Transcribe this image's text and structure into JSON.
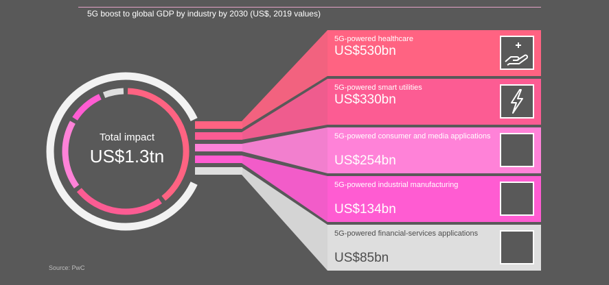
{
  "title": "5G boost to global GDP by industry by 2030 (US$, 2019 values)",
  "total": {
    "label": "Total impact",
    "value": "US$1.3tn"
  },
  "source": "Source: PwC",
  "colors": {
    "background": "#595959",
    "healthcare": "#ff6382",
    "smart_utilities": "#fc5c93",
    "consumer_media": "#ff82d8",
    "industrial": "#ff5cd2",
    "financial": "#dedede",
    "ring_track": "#f2f2f2"
  },
  "chart_data": {
    "type": "bar",
    "title": "5G boost to global GDP by industry by 2030 (US$, 2019 values)",
    "unit": "US$bn",
    "categories": [
      "5G-powered healthcare",
      "5G-powered smart utilities",
      "5G-powered consumer and media applications",
      "5G-powered industrial manufacturing",
      "5G-powered financial-services applications"
    ],
    "values": [
      530,
      330,
      254,
      134,
      85
    ]
  },
  "industries": [
    {
      "label": "5G-powered healthcare",
      "value": "US$530bn",
      "icon": "hand-with-plus-icon"
    },
    {
      "label": "5G-powered smart utilities",
      "value": "US$330bn",
      "icon": "lightning-bolt-icon"
    },
    {
      "label": "5G-powered consumer and media applications",
      "value": "US$254bn",
      "icon": "blank-icon-box"
    },
    {
      "label": "5G-powered industrial manufacturing",
      "value": "US$134bn",
      "icon": "blank-icon-box"
    },
    {
      "label": "5G-powered financial-services applications",
      "value": "US$85bn",
      "icon": "blank-icon-box"
    }
  ]
}
